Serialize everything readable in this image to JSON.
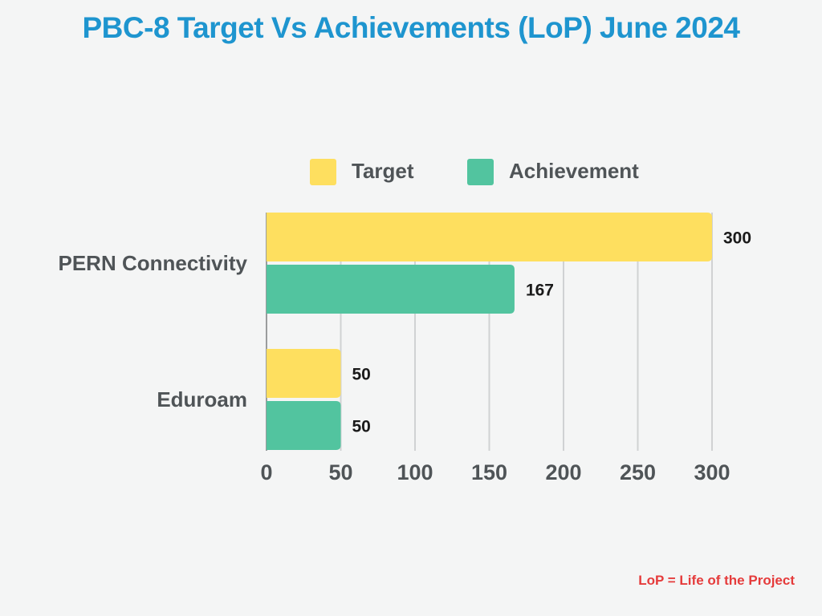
{
  "chart_data": {
    "type": "bar",
    "orientation": "horizontal",
    "title": "PBC-8 Target Vs Achievements (LoP) June 2024",
    "categories": [
      "PERN Connectivity",
      "Eduroam"
    ],
    "series": [
      {
        "name": "Target",
        "values": [
          300,
          50
        ],
        "color": "#fedf5f"
      },
      {
        "name": "Achievement",
        "values": [
          167,
          50
        ],
        "color": "#52c49f"
      }
    ],
    "x_ticks": [
      0,
      50,
      100,
      150,
      200,
      250,
      300
    ],
    "xlim": [
      0,
      300
    ],
    "grid": true,
    "legend_position": "top"
  },
  "footnote": "LoP = Life of the Project"
}
